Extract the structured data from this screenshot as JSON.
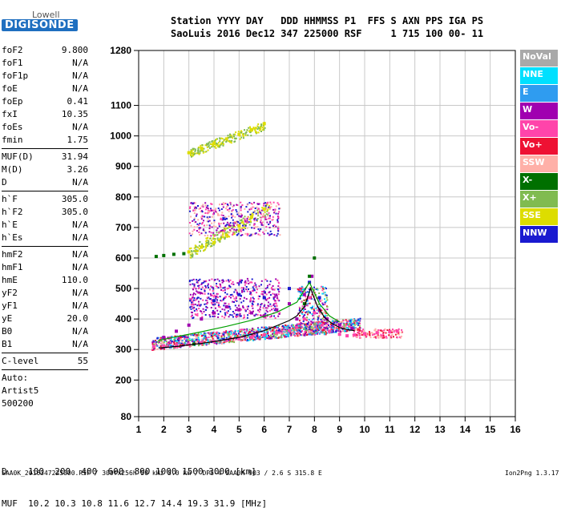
{
  "logo": {
    "line1": "Lowell",
    "line2": "DIGISONDE"
  },
  "header": {
    "row1": "Station YYYY DAY   DDD HHMMSS P1  FFS S AXN PPS IGA PS",
    "row2": "SaoLuis 2016 Dec12 347 225000 RSF     1 715 100 00- 11"
  },
  "params": {
    "group1": [
      {
        "name": "foF2",
        "value": "9.800"
      },
      {
        "name": "foF1",
        "value": "N/A"
      },
      {
        "name": "foF1p",
        "value": "N/A"
      },
      {
        "name": "foE",
        "value": "N/A"
      },
      {
        "name": "foEp",
        "value": "0.41"
      },
      {
        "name": "fxI",
        "value": "10.35"
      },
      {
        "name": "foEs",
        "value": "N/A"
      },
      {
        "name": "fmin",
        "value": "1.75"
      }
    ],
    "group2": [
      {
        "name": "MUF(D)",
        "value": "31.94"
      },
      {
        "name": "M(D)",
        "value": "3.26"
      },
      {
        "name": "D",
        "value": "N/A"
      }
    ],
    "group3": [
      {
        "name": "h`F",
        "value": "305.0"
      },
      {
        "name": "h`F2",
        "value": "305.0"
      },
      {
        "name": "h`E",
        "value": "N/A"
      },
      {
        "name": "h`Es",
        "value": "N/A"
      }
    ],
    "group4": [
      {
        "name": "hmF2",
        "value": "N/A"
      },
      {
        "name": "hmF1",
        "value": "N/A"
      },
      {
        "name": "hmE",
        "value": "110.0"
      },
      {
        "name": "yF2",
        "value": "N/A"
      },
      {
        "name": "yF1",
        "value": "N/A"
      },
      {
        "name": "yE",
        "value": "20.0"
      },
      {
        "name": "B0",
        "value": "N/A"
      },
      {
        "name": "B1",
        "value": "N/A"
      }
    ],
    "clevel": {
      "name": "C-level",
      "value": "55"
    },
    "auto": [
      "Auto:",
      "Artist5",
      "500200"
    ]
  },
  "legend": [
    {
      "label": "NoVal",
      "color": "#a9a9a9"
    },
    {
      "label": "NNE",
      "color": "#00e0ff"
    },
    {
      "label": "E",
      "color": "#2f9cf0"
    },
    {
      "label": "W",
      "color": "#a000b0"
    },
    {
      "label": "Vo-",
      "color": "#ff44aa"
    },
    {
      "label": "Vo+",
      "color": "#ee1133"
    },
    {
      "label": "SSW",
      "color": "#ffb0a8"
    },
    {
      "label": "X-",
      "color": "#007000"
    },
    {
      "label": "X+",
      "color": "#80bb50"
    },
    {
      "label": "SSE",
      "color": "#dddd00"
    },
    {
      "label": "NNW",
      "color": "#1a1ad0"
    }
  ],
  "footer": {
    "d_row": "D    100  200  400  600  800 1000 1500 3000 [km]",
    "muf_row": "MUF  10.2 10.3 10.8 11.6 12.7 14.4 19.3 31.9 [MHz]",
    "bottom": "SAA0K_2016347225000.RSF / 300fx256h 50 kHz 5.0 km / DPS-4 SAA0K 903 / 2.6 S 315.8 E",
    "version": "Ion2Png 1.3.17"
  },
  "chart_data": {
    "type": "scatter",
    "xlim": [
      1,
      16
    ],
    "ylim": [
      80,
      1280
    ],
    "x_ticks": [
      1,
      2,
      3,
      4,
      5,
      6,
      7,
      8,
      9,
      10,
      11,
      12,
      13,
      14,
      15,
      16
    ],
    "y_ticks": [
      80,
      200,
      300,
      400,
      500,
      600,
      700,
      800,
      900,
      1000,
      1100,
      1280
    ],
    "grid": true,
    "series": [
      {
        "name": "Vo-",
        "x": [
          1.6,
          2.0,
          2.5,
          3.0,
          3.5,
          4.0,
          4.5,
          5.0,
          5.5,
          6.0,
          6.5,
          7.0,
          7.3,
          7.6,
          7.8,
          8.0,
          8.3,
          8.6,
          9.0,
          9.3,
          9.6,
          10.0,
          10.5,
          11.0,
          11.3
        ],
        "y": [
          310,
          312,
          315,
          318,
          322,
          326,
          330,
          335,
          340,
          348,
          355,
          362,
          372,
          400,
          470,
          420,
          380,
          360,
          350,
          345,
          348,
          352,
          355,
          358,
          360
        ]
      },
      {
        "name": "W",
        "x": [
          2.0,
          2.5,
          3.0,
          3.5,
          4.0,
          4.5,
          5.0,
          5.5,
          6.0,
          6.5,
          7.0,
          7.3,
          7.6,
          7.9,
          8.2,
          8.5,
          9.0,
          9.5
        ],
        "y": [
          340,
          360,
          380,
          400,
          420,
          440,
          430,
          420,
          410,
          430,
          450,
          400,
          480,
          540,
          430,
          400,
          380,
          370
        ]
      },
      {
        "name": "SSE",
        "x": [
          3.0,
          3.5,
          4.0,
          4.5,
          5.0,
          5.5,
          6.0,
          3.0,
          3.5,
          4.0,
          4.5,
          5.0,
          5.5,
          6.0
        ],
        "y": [
          620,
          635,
          650,
          675,
          705,
          735,
          760,
          945,
          960,
          975,
          990,
          1005,
          1020,
          1040
        ]
      },
      {
        "name": "NNW",
        "x": [
          4.0,
          5.0,
          6.0,
          7.0,
          7.8,
          8.2
        ],
        "y": [
          460,
          480,
          470,
          500,
          520,
          470
        ]
      },
      {
        "name": "X-",
        "x": [
          1.7,
          2.0,
          2.4,
          2.8,
          3.2,
          7.6,
          7.8,
          8.0
        ],
        "y": [
          605,
          608,
          612,
          614,
          318,
          450,
          540,
          600
        ]
      }
    ],
    "trace": {
      "x": [
        1.8,
        2.5,
        3.0,
        3.5,
        4.0,
        4.5,
        5.0,
        5.5,
        6.0,
        6.5,
        7.0,
        7.3,
        7.6,
        7.85,
        8.1,
        8.4,
        8.7,
        9.0,
        9.3,
        9.6
      ],
      "y": [
        305,
        310,
        315,
        320,
        326,
        333,
        340,
        350,
        362,
        378,
        395,
        410,
        440,
        500,
        445,
        405,
        385,
        372,
        365,
        362
      ]
    },
    "virtual_height_curve": {
      "x": [
        1.8,
        2.5,
        3.5,
        4.5,
        5.5,
        6.5,
        7.3,
        7.8,
        8.2,
        8.6,
        9.0
      ],
      "y": [
        330,
        342,
        358,
        376,
        396,
        422,
        455,
        520,
        450,
        410,
        390
      ]
    }
  }
}
